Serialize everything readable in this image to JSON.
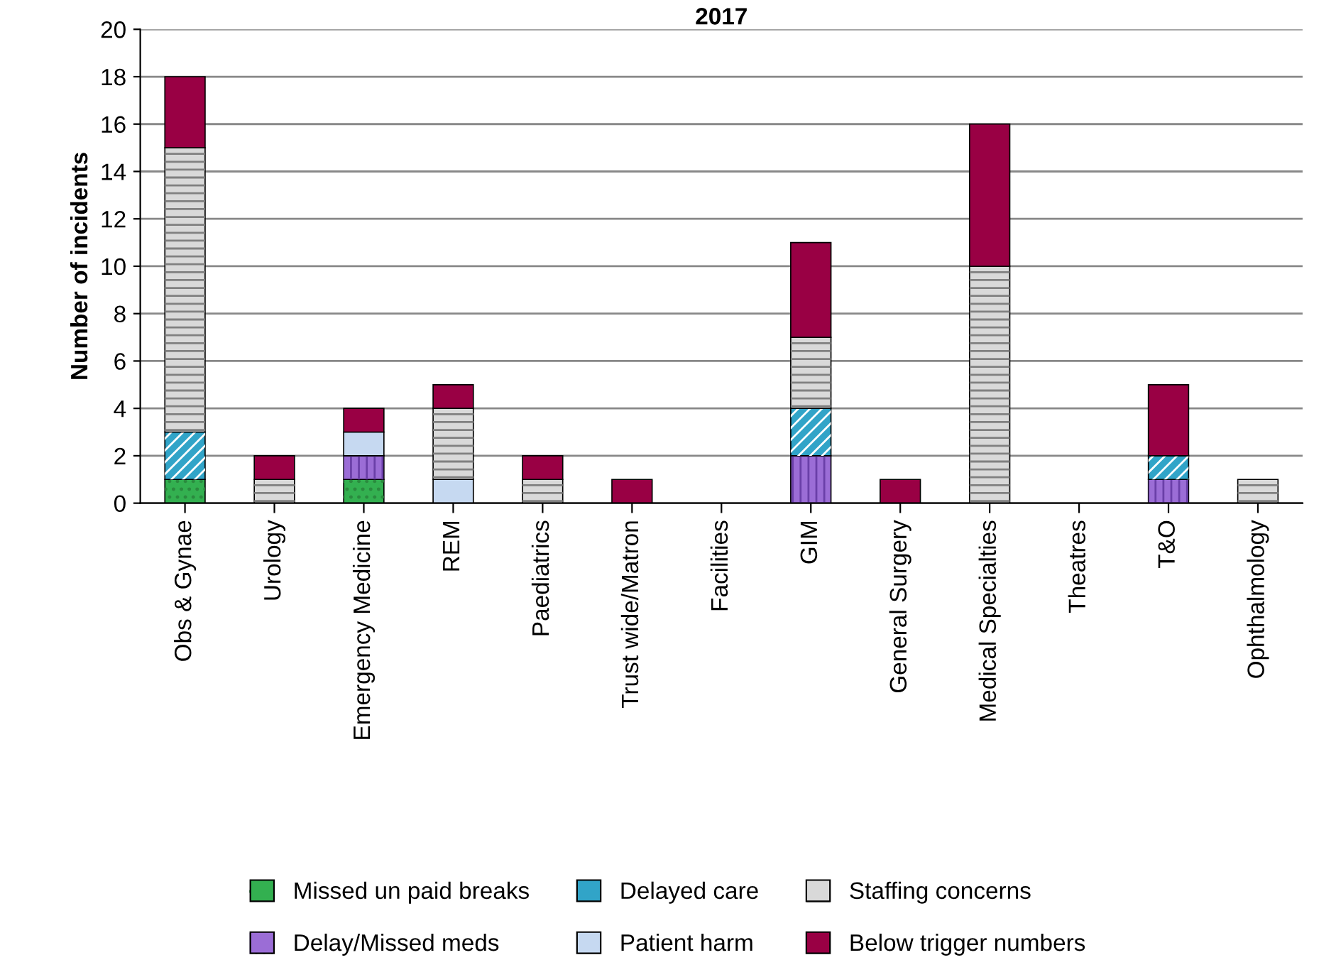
{
  "chart_data": {
    "type": "bar",
    "title": "2017",
    "ylabel": "Number of incidents",
    "categories": [
      "Obs & Gynae",
      "Urology",
      "Emergency Medicine",
      "REM",
      "Paediatrics",
      "Trust wide/Matron",
      "Facilities",
      "GIM",
      "General Surgery",
      "Medical Specialties",
      "Theatres",
      "T&O",
      "Ophthalmology"
    ],
    "stacked": true,
    "series": [
      {
        "name": "Missed un paid breaks",
        "color": "#33b050",
        "values": [
          1,
          0,
          1,
          0,
          0,
          0,
          0,
          0,
          0,
          0,
          0,
          0,
          0
        ]
      },
      {
        "name": "Delay/Missed meds",
        "color": "#9b6dd6",
        "values": [
          0,
          0,
          1,
          0,
          0,
          0,
          0,
          2,
          0,
          0,
          0,
          1,
          0
        ]
      },
      {
        "name": "Delayed care",
        "color": "#31a4c8",
        "values": [
          2,
          0,
          0,
          0,
          0,
          0,
          0,
          2,
          0,
          0,
          0,
          1,
          0
        ]
      },
      {
        "name": "Patient harm",
        "color": "#c6d9f1",
        "values": [
          0,
          0,
          1,
          1,
          0,
          0,
          0,
          0,
          0,
          0,
          0,
          0,
          0
        ]
      },
      {
        "name": "Staffing concerns",
        "color": "#d9d9d9",
        "values": [
          12,
          1,
          0,
          3,
          1,
          0,
          0,
          3,
          0,
          10,
          0,
          0,
          1
        ]
      },
      {
        "name": "Below trigger numbers",
        "color": "#990044",
        "values": [
          3,
          1,
          1,
          1,
          1,
          1,
          0,
          4,
          1,
          6,
          0,
          3,
          0
        ]
      }
    ],
    "ylim": [
      0,
      20
    ],
    "yticks": [
      0,
      2,
      4,
      6,
      8,
      10,
      12,
      14,
      16,
      18,
      20
    ],
    "grid": "y",
    "legend": "bottom"
  }
}
